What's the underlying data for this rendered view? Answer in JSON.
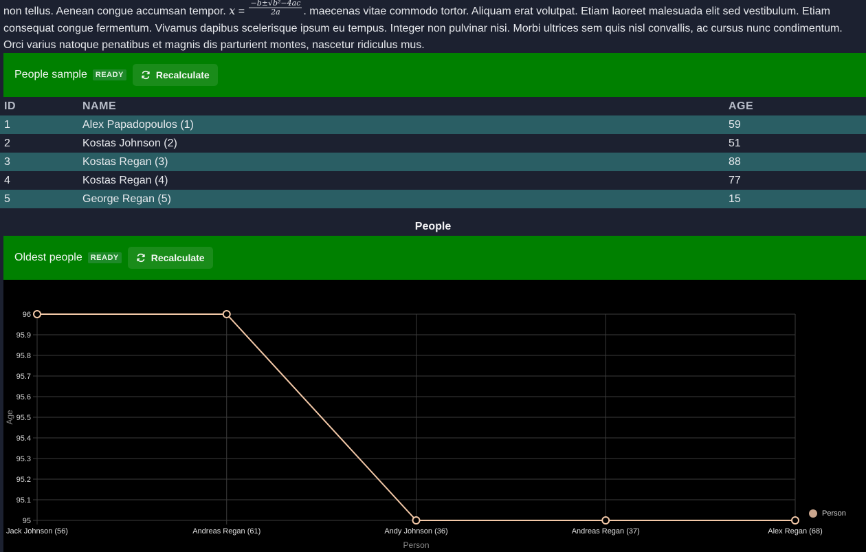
{
  "intro": {
    "text_before": "non tellus. Aenean congue accumsan tempor. ",
    "math_var": "x",
    "math_eq": " = ",
    "frac_num": "−b±√b²−4ac",
    "frac_den": "2a",
    "text_after": ". maecenas vitae commodo tortor. Aliquam erat volutpat. Etiam laoreet malesuada elit sed vestibulum. Etiam consequat congue fermentum. Vivamus dapibus scelerisque ipsum eu tempus. Integer non pulvinar nisi. Morbi ultrices sem quis nisl convallis, ac cursus nunc condimentum. Orci varius natoque penatibus et magnis dis parturient montes, nascetur ridiculus mus."
  },
  "people_panel": {
    "title": "People sample",
    "badge": "READY",
    "button": "Recalculate"
  },
  "table": {
    "headers": [
      "ID",
      "NAME",
      "AGE"
    ],
    "rows": [
      [
        "1",
        "Alex Papadopoulos (1)",
        "59"
      ],
      [
        "2",
        "Kostas Johnson (2)",
        "51"
      ],
      [
        "3",
        "Kostas Regan (3)",
        "88"
      ],
      [
        "4",
        "Kostas Regan (4)",
        "77"
      ],
      [
        "5",
        "George Regan (5)",
        "15"
      ]
    ]
  },
  "section_title": "People",
  "oldest_panel": {
    "title": "Oldest people",
    "badge": "READY",
    "button": "Recalculate"
  },
  "colors": {
    "panel_green": "#008000",
    "row_teal": "#2a5e64",
    "series_line": "#f4c9a8",
    "legend_dot": "#c9a48c"
  },
  "chart_data": {
    "type": "line",
    "categories": [
      "Jack Johnson (56)",
      "Andreas Regan (61)",
      "Andy Johnson (36)",
      "Andreas Regan (37)",
      "Alex Regan (68)"
    ],
    "series": [
      {
        "name": "Person",
        "values": [
          96,
          96,
          95,
          95,
          95
        ]
      }
    ],
    "xlabel": "Person",
    "ylabel": "Age",
    "ylim": [
      95,
      96
    ],
    "yticks": [
      "95",
      "95.1",
      "95.2",
      "95.3",
      "95.4",
      "95.5",
      "95.6",
      "95.7",
      "95.8",
      "95.9",
      "96"
    ],
    "grid": true,
    "legend": "right"
  }
}
